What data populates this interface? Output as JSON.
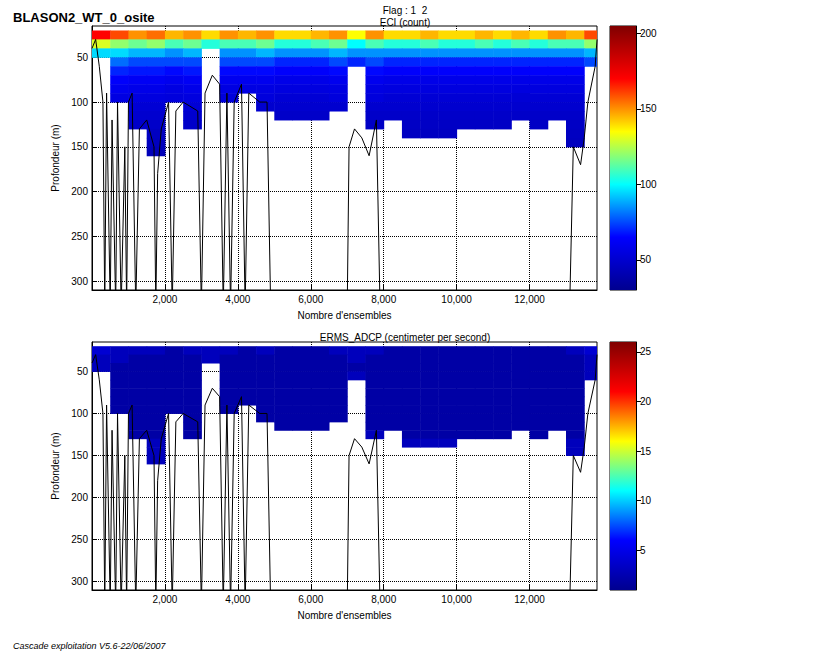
{
  "header": {
    "title": "BLASON2_WT_0_osite",
    "flag": "Flag : 1  2"
  },
  "footer": "Cascade exploitation V5.6-22/06/2007",
  "chart_data": [
    {
      "type": "heatmap",
      "title": "ECI (count)",
      "x_label": "Nombre d'ensembles",
      "y_label": "Profondeur (m)",
      "xlim": [
        0,
        13850
      ],
      "xticks": [
        2000,
        4000,
        6000,
        8000,
        10000,
        12000
      ],
      "ylim": [
        15,
        310
      ],
      "yticks": [
        50,
        100,
        150,
        200,
        250,
        300
      ],
      "grid": true,
      "colorbar": {
        "range": [
          30,
          205
        ],
        "ticks": [
          50,
          100,
          150,
          200
        ]
      },
      "x": [
        250,
        750,
        1250,
        1750,
        2250,
        2750,
        3250,
        3750,
        4250,
        4750,
        5250,
        5750,
        6250,
        6750,
        7250,
        7750,
        8250,
        8750,
        9250,
        9750,
        10250,
        10750,
        11250,
        11750,
        12250,
        12750,
        13250,
        13750
      ],
      "y": [
        25,
        35,
        45,
        55,
        65,
        75,
        85,
        95,
        105,
        115,
        125,
        135,
        145,
        155
      ],
      "cells": [
        [
          170,
          160,
          150,
          155,
          145,
          150,
          140,
          150,
          145,
          150,
          140,
          140,
          145,
          150,
          135,
          150,
          140,
          140,
          145,
          140,
          140,
          145,
          140,
          145,
          140,
          150,
          145,
          160
        ],
        [
          130,
          120,
          115,
          120,
          110,
          115,
          105,
          110,
          110,
          115,
          105,
          105,
          110,
          115,
          100,
          110,
          105,
          105,
          110,
          105,
          105,
          110,
          105,
          110,
          105,
          110,
          110,
          120
        ],
        [
          95,
          95,
          90,
          90,
          85,
          90,
          null,
          85,
          85,
          90,
          85,
          85,
          85,
          90,
          85,
          85,
          85,
          85,
          85,
          85,
          85,
          85,
          85,
          85,
          85,
          85,
          85,
          90
        ],
        [
          null,
          80,
          75,
          75,
          75,
          75,
          null,
          75,
          75,
          75,
          70,
          70,
          70,
          75,
          70,
          75,
          70,
          70,
          70,
          70,
          70,
          70,
          70,
          70,
          70,
          70,
          70,
          75
        ],
        [
          null,
          70,
          68,
          68,
          66,
          68,
          null,
          66,
          66,
          66,
          64,
          64,
          64,
          66,
          null,
          66,
          64,
          64,
          64,
          64,
          64,
          64,
          64,
          64,
          64,
          64,
          64,
          null
        ],
        [
          null,
          64,
          62,
          62,
          60,
          62,
          null,
          60,
          60,
          60,
          58,
          58,
          58,
          60,
          null,
          60,
          58,
          58,
          58,
          58,
          58,
          58,
          58,
          58,
          58,
          58,
          58,
          null
        ],
        [
          null,
          60,
          58,
          58,
          56,
          58,
          null,
          56,
          56,
          56,
          55,
          55,
          55,
          56,
          null,
          56,
          55,
          55,
          55,
          55,
          55,
          55,
          55,
          55,
          55,
          55,
          55,
          null
        ],
        [
          null,
          56,
          55,
          55,
          54,
          55,
          null,
          54,
          null,
          54,
          52,
          52,
          52,
          54,
          null,
          54,
          52,
          52,
          52,
          52,
          52,
          52,
          52,
          52,
          52,
          52,
          52,
          null
        ],
        [
          null,
          null,
          52,
          52,
          null,
          52,
          null,
          null,
          null,
          50,
          50,
          50,
          50,
          50,
          null,
          50,
          50,
          50,
          50,
          50,
          50,
          50,
          50,
          50,
          50,
          50,
          50,
          null
        ],
        [
          null,
          null,
          50,
          50,
          null,
          50,
          null,
          null,
          null,
          null,
          48,
          48,
          48,
          null,
          null,
          48,
          48,
          48,
          48,
          48,
          48,
          48,
          48,
          48,
          48,
          48,
          48,
          null
        ],
        [
          null,
          null,
          48,
          48,
          null,
          48,
          null,
          null,
          null,
          null,
          null,
          null,
          null,
          null,
          null,
          47,
          null,
          47,
          47,
          47,
          47,
          47,
          47,
          null,
          47,
          null,
          47,
          null
        ],
        [
          null,
          null,
          null,
          46,
          null,
          null,
          null,
          null,
          null,
          null,
          null,
          null,
          null,
          null,
          null,
          null,
          null,
          46,
          46,
          46,
          null,
          null,
          null,
          null,
          null,
          null,
          46,
          null
        ],
        [
          null,
          null,
          null,
          45,
          null,
          null,
          null,
          null,
          null,
          null,
          null,
          null,
          null,
          null,
          null,
          null,
          null,
          null,
          null,
          null,
          null,
          null,
          null,
          null,
          null,
          null,
          45,
          null
        ],
        [
          null,
          null,
          null,
          43,
          null,
          null,
          null,
          null,
          null,
          null,
          null,
          null,
          null,
          null,
          null,
          null,
          null,
          null,
          null,
          null,
          null,
          null,
          null,
          null,
          null,
          null,
          null,
          null
        ]
      ],
      "bottom_line": {
        "color": "#000000",
        "x": [
          0,
          100,
          200,
          300,
          350,
          400,
          500,
          550,
          650,
          700,
          800,
          900,
          950,
          1000,
          1100,
          1200,
          1300,
          1500,
          1700,
          1750,
          1800,
          1900,
          2100,
          2200,
          2300,
          2500,
          2900,
          3000,
          3100,
          3300,
          3500,
          3600,
          3700,
          3800,
          3900,
          4100,
          4200,
          4300,
          4600,
          4800,
          4900,
          4950,
          7000,
          7050,
          7200,
          7400,
          7600,
          7800,
          7900,
          7950,
          13100,
          13200,
          13400,
          13500,
          13600,
          13800,
          13850
        ],
        "depth": [
          40,
          30,
          60,
          100,
          330,
          90,
          330,
          120,
          330,
          100,
          330,
          150,
          330,
          100,
          90,
          330,
          130,
          120,
          150,
          330,
          180,
          130,
          100,
          330,
          110,
          100,
          110,
          330,
          90,
          70,
          80,
          330,
          90,
          330,
          100,
          80,
          330,
          90,
          100,
          100,
          330,
          null,
          330,
          150,
          130,
          140,
          160,
          120,
          330,
          null,
          330,
          150,
          170,
          140,
          100,
          60,
          30
        ]
      }
    },
    {
      "type": "heatmap",
      "title": "ERMS_ADCP (centimeter per second)",
      "x_label": "Nombre d'ensembles",
      "y_label": "Profondeur (m)",
      "xlim": [
        0,
        13850
      ],
      "xticks": [
        2000,
        4000,
        6000,
        8000,
        10000,
        12000
      ],
      "ylim": [
        15,
        310
      ],
      "yticks": [
        50,
        100,
        150,
        200,
        250,
        300
      ],
      "grid": true,
      "colorbar": {
        "range": [
          1,
          26
        ],
        "ticks": [
          5,
          10,
          15,
          20,
          25
        ]
      },
      "x": [
        250,
        750,
        1250,
        1750,
        2250,
        2750,
        3250,
        3750,
        4250,
        4750,
        5250,
        5750,
        6250,
        6750,
        7250,
        7750,
        8250,
        8750,
        9250,
        9750,
        10250,
        10750,
        11250,
        11750,
        12250,
        12750,
        13250,
        13750
      ],
      "y": [
        25,
        35,
        45,
        55,
        65,
        75,
        85,
        95,
        105,
        115,
        125,
        135,
        145,
        155
      ],
      "cells": [
        [
          4,
          3,
          3,
          3,
          2,
          3,
          3,
          3,
          2,
          3,
          2,
          2,
          2,
          3,
          3,
          3,
          2,
          2,
          2,
          2,
          2,
          2,
          2,
          2,
          2,
          2,
          3,
          4
        ],
        [
          3,
          3,
          2,
          2,
          2,
          2,
          3,
          2,
          2,
          2,
          2,
          2,
          2,
          2,
          3,
          2,
          2,
          2,
          2,
          2,
          2,
          2,
          2,
          2,
          2,
          2,
          2,
          3
        ],
        [
          3,
          2,
          2,
          2,
          2,
          2,
          null,
          2,
          2,
          2,
          2,
          2,
          2,
          2,
          2,
          2,
          2,
          2,
          2,
          2,
          2,
          2,
          2,
          2,
          2,
          2,
          2,
          3
        ],
        [
          null,
          2,
          2,
          2,
          2,
          2,
          null,
          2,
          2,
          2,
          2,
          2,
          2,
          2,
          3,
          2,
          2,
          2,
          2,
          2,
          2,
          2,
          2,
          2,
          2,
          2,
          2,
          3
        ],
        [
          null,
          2,
          2,
          2,
          2,
          2,
          null,
          2,
          2,
          2,
          2,
          2,
          2,
          2,
          null,
          2,
          2,
          2,
          2,
          2,
          2,
          2,
          2,
          2,
          2,
          2,
          2,
          null
        ],
        [
          null,
          2,
          2,
          2,
          2,
          2,
          null,
          2,
          2,
          2,
          2,
          2,
          2,
          2,
          null,
          2,
          2,
          2,
          2,
          2,
          2,
          2,
          2,
          2,
          2,
          2,
          2,
          null
        ],
        [
          null,
          2,
          2,
          2,
          2,
          2,
          null,
          2,
          2,
          2,
          2,
          2,
          2,
          2,
          null,
          2,
          2,
          2,
          2,
          2,
          2,
          2,
          2,
          2,
          2,
          2,
          2,
          null
        ],
        [
          null,
          2,
          2,
          2,
          2,
          2,
          null,
          2,
          null,
          2,
          2,
          2,
          2,
          2,
          null,
          2,
          2,
          2,
          2,
          2,
          2,
          2,
          2,
          2,
          2,
          2,
          2,
          null
        ],
        [
          null,
          null,
          2,
          2,
          null,
          2,
          null,
          null,
          null,
          2,
          2,
          2,
          2,
          2,
          null,
          2,
          2,
          2,
          2,
          2,
          2,
          2,
          2,
          2,
          2,
          2,
          2,
          null
        ],
        [
          null,
          null,
          2,
          2,
          null,
          2,
          null,
          null,
          null,
          null,
          2,
          2,
          2,
          null,
          null,
          2,
          2,
          2,
          2,
          2,
          2,
          2,
          2,
          2,
          2,
          2,
          2,
          null
        ],
        [
          null,
          null,
          2,
          2,
          null,
          2,
          null,
          null,
          null,
          null,
          null,
          null,
          null,
          null,
          null,
          3,
          null,
          2,
          2,
          2,
          2,
          2,
          2,
          null,
          2,
          null,
          2,
          null
        ],
        [
          null,
          null,
          null,
          3,
          null,
          null,
          null,
          null,
          null,
          null,
          null,
          null,
          null,
          null,
          null,
          null,
          null,
          3,
          3,
          3,
          null,
          null,
          null,
          null,
          null,
          null,
          3,
          null
        ],
        [
          null,
          null,
          null,
          3,
          null,
          null,
          null,
          null,
          null,
          null,
          null,
          null,
          null,
          null,
          null,
          null,
          null,
          null,
          null,
          null,
          null,
          null,
          null,
          null,
          null,
          null,
          3,
          null
        ],
        [
          null,
          null,
          null,
          3,
          null,
          null,
          null,
          null,
          null,
          null,
          null,
          null,
          null,
          null,
          null,
          null,
          null,
          null,
          null,
          null,
          null,
          null,
          null,
          null,
          null,
          null,
          null,
          null
        ]
      ],
      "bottom_line": {
        "color": "#000000",
        "x": [
          0,
          100,
          200,
          300,
          350,
          400,
          500,
          550,
          650,
          700,
          800,
          900,
          950,
          1000,
          1100,
          1200,
          1300,
          1500,
          1700,
          1750,
          1800,
          1900,
          2100,
          2200,
          2300,
          2500,
          2900,
          3000,
          3100,
          3300,
          3500,
          3600,
          3700,
          3800,
          3900,
          4100,
          4200,
          4300,
          4600,
          4800,
          4900,
          4950,
          7000,
          7050,
          7200,
          7400,
          7600,
          7800,
          7900,
          7950,
          13100,
          13200,
          13400,
          13500,
          13600,
          13800,
          13850
        ],
        "depth": [
          40,
          30,
          60,
          100,
          330,
          90,
          330,
          120,
          330,
          100,
          330,
          150,
          330,
          100,
          90,
          330,
          130,
          120,
          150,
          330,
          180,
          130,
          100,
          330,
          110,
          100,
          110,
          330,
          90,
          70,
          80,
          330,
          90,
          330,
          100,
          80,
          330,
          90,
          100,
          100,
          330,
          null,
          330,
          150,
          130,
          140,
          160,
          120,
          330,
          null,
          330,
          150,
          170,
          140,
          100,
          60,
          30
        ]
      }
    }
  ]
}
